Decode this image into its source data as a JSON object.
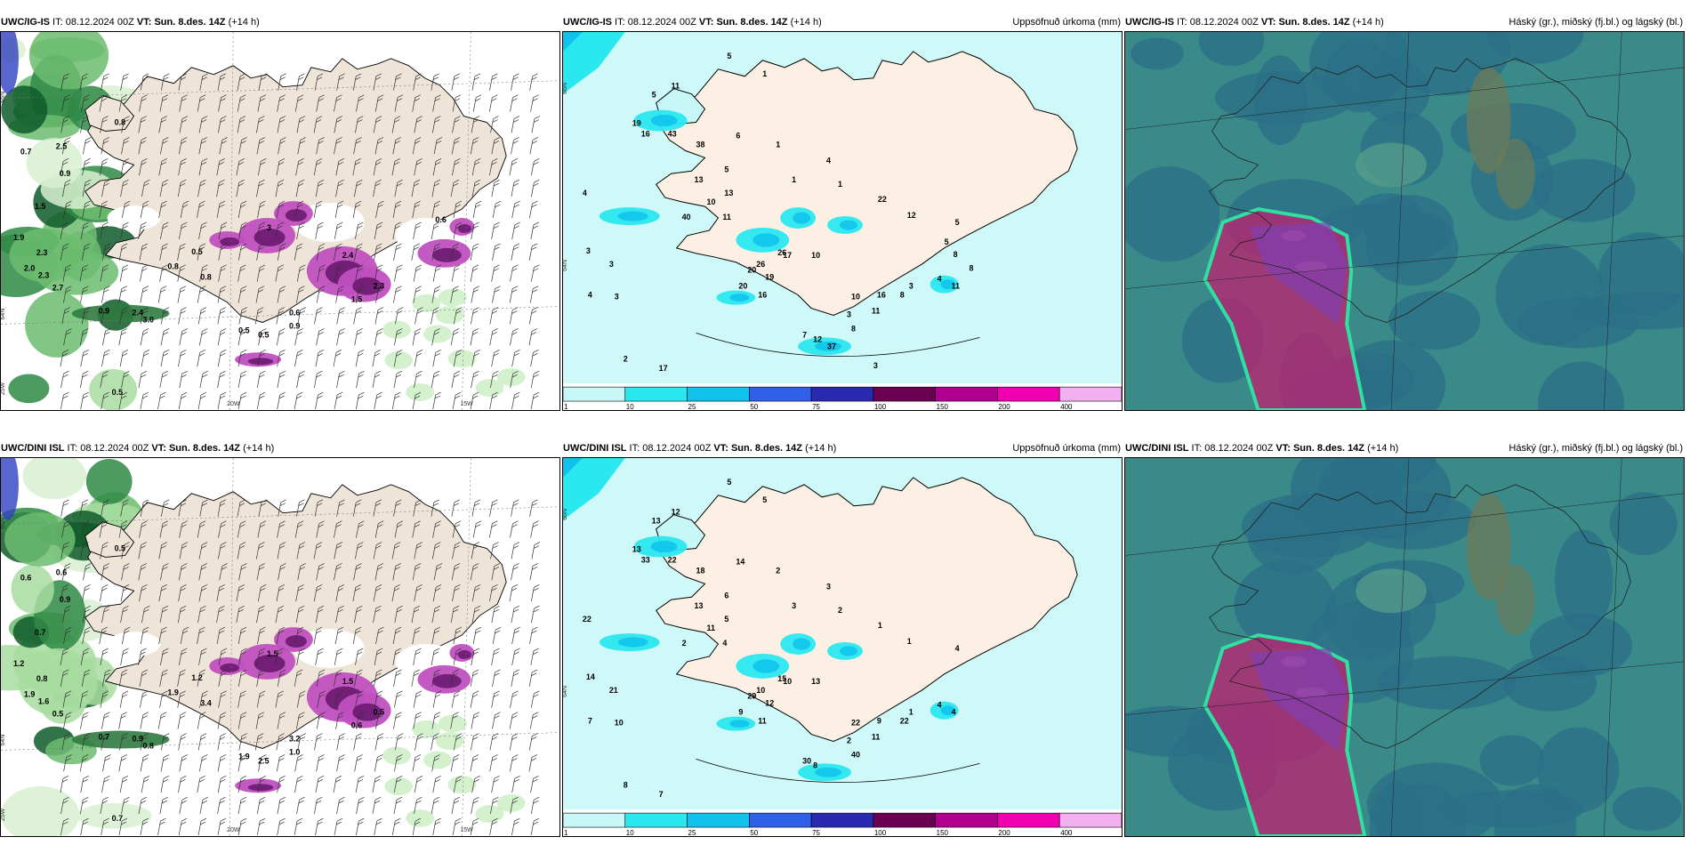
{
  "panels": [
    {
      "id": "r1p1",
      "row": 0,
      "col": 0,
      "model": "UWC/IG-IS",
      "it_label": "IT:",
      "it_value": "08.12.2024 00Z",
      "vt_label": "VT:",
      "vt_value": "Sun. 8.des. 14Z",
      "lead": "(+14 h)",
      "right_title": "",
      "kind": "wind",
      "edge_labels": {
        "bottom": [
          "20W",
          "15W"
        ],
        "left": [
          "65N",
          "64N",
          "25W"
        ]
      },
      "values": [
        "0.8",
        "0.7",
        "2.5",
        "0.9",
        "1.5",
        "2.3",
        "1.9",
        "2.0",
        "2.3",
        "2.7",
        "0.9",
        "2.4",
        "3.0",
        "0.5",
        "0.5",
        "0.8",
        "0.8",
        "3",
        "0.6",
        "0.9",
        "0.5",
        "0.5",
        "2.4",
        "2.3",
        "1.5",
        "0.6"
      ]
    },
    {
      "id": "r1p2",
      "row": 0,
      "col": 1,
      "model": "UWC/IG-IS",
      "it_label": "IT:",
      "it_value": "08.12.2024 00Z",
      "vt_label": "VT:",
      "vt_value": "Sun. 8.des. 14Z",
      "lead": "(+14 h)",
      "right_title": "Uppsöfnuð úrkoma (mm)",
      "kind": "precip",
      "edge_labels": {
        "left": [
          "66N",
          "64N"
        ]
      },
      "values": [
        "5",
        "1",
        "11",
        "5",
        "19",
        "16",
        "43",
        "38",
        "13",
        "5",
        "6",
        "10",
        "13",
        "11",
        "1",
        "4",
        "1",
        "1",
        "40",
        "26",
        "20",
        "4",
        "3",
        "3",
        "4",
        "3",
        "2",
        "17",
        "26",
        "17",
        "19",
        "16",
        "20",
        "10",
        "10",
        "3",
        "22",
        "12",
        "5",
        "4",
        "3",
        "8",
        "8",
        "7",
        "12",
        "16",
        "11",
        "11",
        "8",
        "5",
        "8",
        "37",
        "3"
      ],
      "colorbar": {
        "ticks": [
          "1",
          "10",
          "25",
          "50",
          "75",
          "100",
          "150",
          "200",
          "400"
        ],
        "colors": [
          "#c7f7f7",
          "#2be7ef",
          "#11c3ec",
          "#3060e8",
          "#2a2ab0",
          "#6a0050",
          "#b00090",
          "#f000b0",
          "#f4b0f0"
        ]
      }
    },
    {
      "id": "r1p3",
      "row": 0,
      "col": 2,
      "model": "UWC/IG-IS",
      "it_label": "IT:",
      "it_value": "08.12.2024 00Z",
      "vt_label": "VT:",
      "vt_value": "Sun. 8.des. 14Z",
      "lead": "(+14 h)",
      "right_title": "Háský (gr.), miðský (fj.bl.) og lágský (bl.)",
      "kind": "cloud"
    },
    {
      "id": "r2p1",
      "row": 1,
      "col": 0,
      "model": "UWC/DINI ISL",
      "it_label": "IT:",
      "it_value": "08.12.2024 00Z",
      "vt_label": "VT:",
      "vt_value": "Sun. 8.des. 14Z",
      "lead": "(+14 h)",
      "right_title": "",
      "kind": "wind",
      "edge_labels": {
        "bottom": [
          "20W",
          "15W"
        ],
        "left": [
          "65N",
          "64N",
          "25W"
        ]
      },
      "values": [
        "0.5",
        "0.6",
        "0.6",
        "0.9",
        "0.7",
        "0.8",
        "1.2",
        "1.9",
        "1.6",
        "0.5",
        "0.7",
        "0.9",
        "0.8",
        "0.7",
        "1.2",
        "1.9",
        "3.4",
        "1.5",
        "3.2",
        "1.0",
        "1.9",
        "2.5",
        "1.5",
        "0.5",
        "0.6"
      ]
    },
    {
      "id": "r2p2",
      "row": 1,
      "col": 1,
      "model": "UWC/DINI ISL",
      "it_label": "IT:",
      "it_value": "08.12.2024 00Z",
      "vt_label": "VT:",
      "vt_value": "Sun. 8.des. 14Z",
      "lead": "(+14 h)",
      "right_title": "Uppsöfnuð úrkoma (mm)",
      "kind": "precip",
      "edge_labels": {
        "left": [
          "66N",
          "64N"
        ]
      },
      "values": [
        "5",
        "5",
        "12",
        "13",
        "13",
        "33",
        "22",
        "18",
        "13",
        "6",
        "14",
        "11",
        "5",
        "4",
        "2",
        "3",
        "3",
        "2",
        "2",
        "15",
        "29",
        "22",
        "14",
        "21",
        "7",
        "10",
        "8",
        "7",
        "10",
        "10",
        "12",
        "11",
        "9",
        "13",
        "22",
        "2",
        "1",
        "1",
        "4",
        "4",
        "1",
        "22",
        "40",
        "30",
        "8",
        "9",
        "11",
        "4"
      ],
      "colorbar": {
        "ticks": [
          "1",
          "10",
          "25",
          "50",
          "75",
          "100",
          "150",
          "200",
          "400"
        ],
        "colors": [
          "#c7f7f7",
          "#2be7ef",
          "#11c3ec",
          "#3060e8",
          "#2a2ab0",
          "#6a0050",
          "#b00090",
          "#f000b0",
          "#f4b0f0"
        ]
      }
    },
    {
      "id": "r2p3",
      "row": 1,
      "col": 2,
      "model": "UWC/DINI ISL",
      "it_label": "IT:",
      "it_value": "08.12.2024 00Z",
      "vt_label": "VT:",
      "vt_value": "Sun. 8.des. 14Z",
      "lead": "(+14 h)",
      "right_title": "Háský (gr.), miðský (fj.bl.) og lágský (bl.)",
      "kind": "cloud"
    }
  ]
}
